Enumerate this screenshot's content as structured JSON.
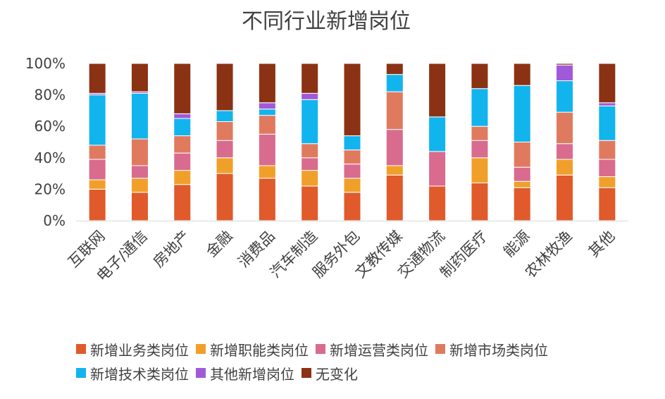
{
  "chart_data": {
    "type": "bar",
    "stacked": true,
    "percent": true,
    "title": "不同行业新增岗位",
    "xlabel": "",
    "ylabel": "",
    "ylim": [
      0,
      100
    ],
    "ytick_labels": [
      "0%",
      "20%",
      "40%",
      "60%",
      "80%",
      "100%"
    ],
    "grid": false,
    "legend_position": "bottom",
    "categories": [
      "互联网",
      "电子/通信",
      "房地产",
      "金融",
      "消费品",
      "汽车制造",
      "服务外包",
      "文教传媒",
      "交通物流",
      "制药医疗",
      "能源",
      "农林牧渔",
      "其他"
    ],
    "series": [
      {
        "name": "新增业务类岗位",
        "color": "#E05A2B",
        "values": [
          20,
          18,
          23,
          30,
          27,
          22,
          18,
          29,
          22,
          24,
          21,
          29,
          21
        ]
      },
      {
        "name": "新增职能类岗位",
        "color": "#F0A02A",
        "values": [
          6,
          9,
          9,
          10,
          8,
          10,
          9,
          6,
          0,
          16,
          4,
          10,
          7
        ]
      },
      {
        "name": "新增运营类岗位",
        "color": "#D96B8E",
        "values": [
          13,
          8,
          11,
          11,
          20,
          8,
          9,
          23,
          22,
          11,
          9,
          10,
          11
        ]
      },
      {
        "name": "新增市场类岗位",
        "color": "#E07A5F",
        "values": [
          9,
          17,
          11,
          12,
          12,
          9,
          9,
          24,
          0,
          9,
          16,
          20,
          12
        ]
      },
      {
        "name": "新增技术类岗位",
        "color": "#12B4EE",
        "values": [
          32,
          29,
          11,
          7,
          4,
          28,
          9,
          11,
          22,
          24,
          36,
          20,
          22
        ]
      },
      {
        "name": "其他新增岗位",
        "color": "#A259D9",
        "values": [
          1,
          1,
          3,
          0,
          4,
          4,
          0,
          0,
          0,
          0,
          0,
          10,
          2
        ]
      },
      {
        "name": "无变化",
        "color": "#8B3214",
        "values": [
          19,
          18,
          32,
          30,
          25,
          19,
          46,
          7,
          34,
          16,
          14,
          1,
          25
        ]
      }
    ]
  }
}
